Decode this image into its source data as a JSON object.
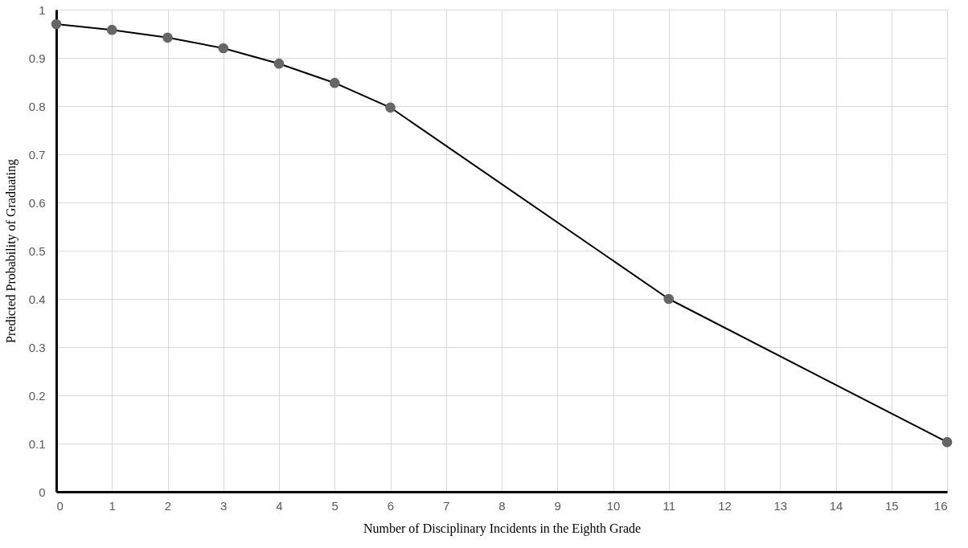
{
  "chart_data": {
    "type": "line",
    "xlabel": "Number of Disciplinary Incidents in the Eighth Grade",
    "ylabel": "Predicted Probability of Graduating",
    "x": [
      0,
      1,
      2,
      3,
      4,
      5,
      6,
      11,
      16
    ],
    "series": [
      {
        "color": "#000000",
        "colors": [
          "#666666",
          "#666666",
          "#666666",
          "#666666",
          "#666666",
          "#666666",
          "#666666",
          "#666666",
          "#666666"
        ],
        "values": [
          0.97,
          0.958,
          0.942,
          0.92,
          0.888,
          0.848,
          0.797,
          0.4,
          0.103
        ]
      }
    ],
    "xlim": [
      0,
      16
    ],
    "xticks": [
      0,
      1,
      2,
      3,
      4,
      5,
      6,
      7,
      8,
      9,
      10,
      11,
      12,
      13,
      14,
      15,
      16
    ],
    "ylim": [
      0,
      1
    ],
    "yticks": [
      0,
      0.1,
      0.2,
      0.3,
      0.4,
      0.5,
      0.6,
      0.7,
      0.8,
      0.9,
      1
    ],
    "grid": true,
    "marker": "circle",
    "line_style": "solid"
  }
}
